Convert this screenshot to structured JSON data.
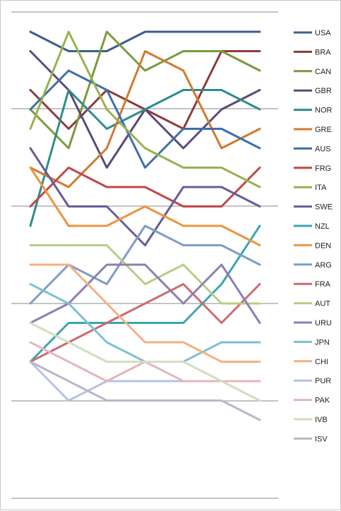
{
  "chart_data": {
    "type": "line",
    "x": [
      1,
      2,
      3,
      4,
      5,
      6,
      7
    ],
    "y_direction": "rank (1 at top)",
    "ylim": [
      1,
      25
    ],
    "grid": true,
    "legend_placement": "right",
    "series": [
      {
        "name": "USA",
        "color": "#3B5E8C",
        "values": [
          1,
          2,
          2,
          1,
          1,
          1,
          1
        ]
      },
      {
        "name": "BRA",
        "color": "#8E3A3A",
        "values": [
          4,
          6,
          4,
          5,
          6,
          2,
          2
        ]
      },
      {
        "name": "CAN",
        "color": "#7A9A3E",
        "values": [
          5,
          7,
          1,
          3,
          2,
          2,
          3
        ]
      },
      {
        "name": "GBR",
        "color": "#5A4A78",
        "values": [
          2,
          4,
          8,
          5,
          7,
          5,
          4
        ]
      },
      {
        "name": "NOR",
        "color": "#2E8C8C",
        "values": [
          11,
          4,
          6,
          5,
          4,
          4,
          5
        ]
      },
      {
        "name": "GRE",
        "color": "#D07A2E",
        "values": [
          8,
          9,
          7,
          2,
          3,
          7,
          6
        ]
      },
      {
        "name": "AUS",
        "color": "#3E6EAC",
        "values": [
          5,
          3,
          4,
          8,
          6,
          6,
          7
        ]
      },
      {
        "name": "FRG",
        "color": "#C0464A",
        "values": [
          10,
          8,
          9,
          9,
          10,
          10,
          8
        ]
      },
      {
        "name": "ITA",
        "color": "#96B24E",
        "values": [
          6,
          1,
          5,
          7,
          8,
          8,
          9
        ]
      },
      {
        "name": "SWE",
        "color": "#6A5A9A",
        "values": [
          7,
          10,
          10,
          12,
          9,
          9,
          10
        ]
      },
      {
        "name": "NZL",
        "color": "#3BA5AF",
        "values": [
          18,
          16,
          16,
          16,
          16,
          14,
          11
        ]
      },
      {
        "name": "DEN",
        "color": "#EE9440",
        "values": [
          8,
          11,
          11,
          10,
          11,
          11,
          12
        ]
      },
      {
        "name": "ARG",
        "color": "#7F9CC6",
        "values": [
          15,
          13,
          14,
          11,
          12,
          12,
          13
        ]
      },
      {
        "name": "FRA",
        "color": "#CC6A72",
        "values": [
          18,
          17,
          16,
          15,
          14,
          16,
          14
        ]
      },
      {
        "name": "AUT",
        "color": "#B6CE82",
        "values": [
          12,
          12,
          12,
          14,
          13,
          15,
          15
        ]
      },
      {
        "name": "URU",
        "color": "#8E7EB4",
        "values": [
          16,
          15,
          13,
          13,
          15,
          13,
          16
        ]
      },
      {
        "name": "JPN",
        "color": "#7EC1D2",
        "values": [
          14,
          15,
          17,
          18,
          18,
          17,
          17
        ]
      },
      {
        "name": "CHI",
        "color": "#F5B080",
        "values": [
          13,
          13,
          15,
          17,
          17,
          18,
          18
        ]
      },
      {
        "name": "PUR",
        "color": "#B2C4E2",
        "values": [
          18,
          20,
          19,
          19,
          19,
          19,
          19
        ]
      },
      {
        "name": "PAK",
        "color": "#E4B6BC",
        "values": [
          17,
          18,
          19,
          18,
          19,
          19,
          19
        ]
      },
      {
        "name": "IVB",
        "color": "#D2DEC0",
        "values": [
          16,
          17,
          18,
          18,
          18,
          19,
          20
        ]
      },
      {
        "name": "ISV",
        "color": "#B8B8C8",
        "values": [
          18,
          19,
          20,
          20,
          20,
          20,
          21
        ]
      }
    ]
  }
}
